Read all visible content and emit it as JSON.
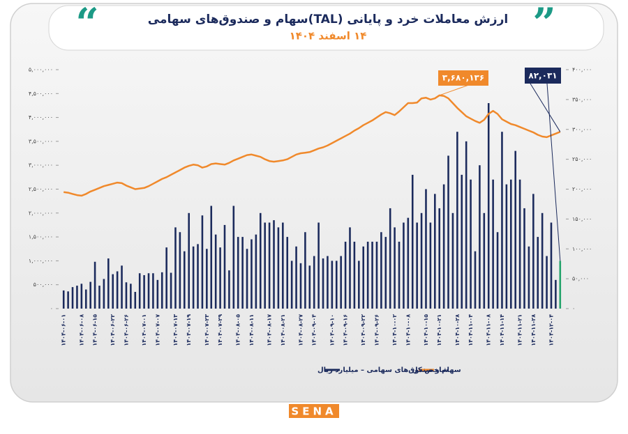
{
  "chart_data": {
    "type": "bar",
    "title": "ارزش معاملات خرد و پایانی (TAL)سهام و صندوق‌های سهامی",
    "subtitle": "۱۴ اسفند ۱۴۰۴",
    "annotations": [
      "۳,۶۸۰,۱۳۶",
      "۸۲,۰۳۱"
    ],
    "logo": "SENA",
    "categories": [
      "۱۴۰۴-۰۶-۰۱",
      null,
      null,
      null,
      "۱۴۰۴-۰۶-۰۸",
      null,
      null,
      "۱۴۰۴-۰۶-۱۵",
      null,
      null,
      null,
      "۱۴۰۴-۰۶-۲۲",
      null,
      null,
      "۱۴۰۴-۰۶-۲۶",
      null,
      null,
      null,
      "۱۴۰۴-۰۷-۰۱",
      null,
      null,
      "۱۴۰۴-۰۷-۰۷",
      null,
      null,
      null,
      "۱۴۰۴-۰۷-۱۳",
      null,
      null,
      "۱۴۰۴-۰۷-۱۹",
      null,
      null,
      null,
      "۱۴۰۴-۰۷-۲۳",
      null,
      null,
      "۱۴۰۴-۰۷-۲۹",
      null,
      null,
      null,
      "۱۴۰۴-۰۸-۰۵",
      null,
      null,
      "۱۴۰۴-۰۸-۱۱",
      null,
      null,
      null,
      "۱۴۰۴-۰۸-۱۷",
      null,
      null,
      "۱۴۰۴-۰۸-۲۱",
      null,
      null,
      null,
      "۱۴۰۴-۰۸-۲۷",
      null,
      null,
      "۱۴۰۴-۰۹-۰۴",
      null,
      null,
      null,
      "۱۴۰۴-۰۹-۱۰",
      null,
      null,
      "۱۴۰۴-۰۹-۱۶",
      null,
      null,
      null,
      "۱۴۰۴-۰۹-۲۲",
      null,
      null,
      "۱۴۰۴-۰۹-۲۶",
      null,
      null,
      null,
      "۱۴۰۴-۱۰-۰۲",
      null,
      null,
      "۱۴۰۴-۱۰-۰۸",
      null,
      null,
      null,
      "۱۴۰۴-۱۰-۱۵",
      null,
      null,
      "۱۴۰۴-۱۰-۲۱",
      null,
      null,
      null,
      "۱۴۰۴-۱۰-۲۸",
      null,
      null,
      "۱۴۰۴-۱۱-۰۴",
      null,
      null,
      null,
      "۱۴۰۴-۱۱-۰۸",
      null,
      null,
      "۱۴۰۴-۱۱-۱۴",
      null,
      null,
      null,
      "۱۴۰۴-۱۱-۲۱",
      null,
      null,
      "۱۴۰۴-۱۱-۲۸",
      null,
      null,
      null,
      "۱۴۰۴-۱۲-۰۴",
      null,
      null
    ],
    "series": [
      {
        "name": "سهام و صندوق‌های سهامی – میلیارد ریال",
        "color": "#1b2a5c",
        "last_color": "#22a36a",
        "values": [
          380000,
          360000,
          450000,
          480000,
          520000,
          400000,
          560000,
          980000,
          480000,
          620000,
          1050000,
          720000,
          780000,
          900000,
          550000,
          520000,
          350000,
          740000,
          700000,
          740000,
          740000,
          600000,
          760000,
          1280000,
          750000,
          1700000,
          1600000,
          1200000,
          2000000,
          1300000,
          1350000,
          1950000,
          1250000,
          2150000,
          1550000,
          1280000,
          1750000,
          800000,
          2150000,
          1500000,
          1500000,
          1250000,
          1450000,
          1550000,
          2000000,
          1800000,
          1800000,
          1850000,
          1700000,
          1800000,
          1500000,
          1000000,
          1300000,
          950000,
          1600000,
          900000,
          1100000,
          1800000,
          1050000,
          1100000,
          1000000,
          1000000,
          1100000,
          1400000,
          1700000,
          1400000,
          1000000,
          1300000,
          1400000,
          1400000,
          1400000,
          1600000,
          1500000,
          2100000,
          1700000,
          1400000,
          1800000,
          1900000,
          2800000,
          1800000,
          2000000,
          2500000,
          1800000,
          2400000,
          2100000,
          2600000,
          3200000,
          2000000,
          3700000,
          2800000,
          3500000,
          2700000,
          1200000,
          3000000,
          2000000,
          4300000,
          2700000,
          1600000,
          3700000,
          2600000,
          2700000,
          3300000,
          2700000,
          2100000,
          1300000,
          2400000,
          1500000,
          2000000,
          1100000,
          1800000,
          600000,
          1000000
        ]
      },
      {
        "name": "شاخص کل",
        "color": "#f0892b",
        "axis": "y2",
        "values": [
          195000,
          194000,
          192000,
          190000,
          189000,
          192000,
          196000,
          199000,
          202000,
          205000,
          207000,
          209000,
          211000,
          210000,
          206000,
          203000,
          200000,
          201000,
          202000,
          205000,
          209000,
          213000,
          217000,
          220000,
          224000,
          228000,
          232000,
          236000,
          239000,
          241000,
          240000,
          236000,
          238000,
          242000,
          243000,
          242000,
          241000,
          244000,
          248000,
          251000,
          254000,
          257000,
          258000,
          256000,
          254000,
          250000,
          247000,
          246000,
          247000,
          248000,
          250000,
          254000,
          258000,
          260000,
          261000,
          262000,
          265000,
          268000,
          270000,
          273000,
          277000,
          281000,
          285000,
          289000,
          293000,
          298000,
          302000,
          307000,
          311000,
          315000,
          320000,
          325000,
          329000,
          327000,
          324000,
          330000,
          337000,
          344000,
          344000,
          345000,
          352000,
          353000,
          350000,
          352000,
          357000,
          356000,
          352000,
          344000,
          336000,
          329000,
          322000,
          318000,
          314000,
          311000,
          316000,
          326000,
          331000,
          326000,
          317000,
          313000,
          309000,
          307000,
          304000,
          301000,
          298000,
          295000,
          291000,
          288000,
          287000,
          290000,
          293000,
          296000
        ]
      }
    ],
    "ylim": [
      0,
      5000000
    ],
    "yticks": [
      {
        "value": 0,
        "label": "۰"
      },
      {
        "value": 500000,
        "label": "۵۰۰,۰۰۰"
      },
      {
        "value": 1000000,
        "label": "۱,۰۰۰,۰۰۰"
      },
      {
        "value": 1500000,
        "label": "۱,۵۰۰,۰۰۰"
      },
      {
        "value": 2000000,
        "label": "۲,۰۰۰,۰۰۰"
      },
      {
        "value": 2500000,
        "label": "۲,۵۰۰,۰۰۰"
      },
      {
        "value": 3000000,
        "label": "۳,۰۰۰,۰۰۰"
      },
      {
        "value": 3500000,
        "label": "۳,۵۰۰,۰۰۰"
      },
      {
        "value": 4000000,
        "label": "۴,۰۰۰,۰۰۰"
      },
      {
        "value": 4500000,
        "label": "۴,۵۰۰,۰۰۰"
      },
      {
        "value": 5000000,
        "label": "۵,۰۰۰,۰۰۰"
      }
    ],
    "y2lim": [
      0,
      400000
    ],
    "y2ticks": [
      {
        "value": 0,
        "label": "۰"
      },
      {
        "value": 50000,
        "label": "۵۰,۰۰۰"
      },
      {
        "value": 100000,
        "label": "۱۰۰,۰۰۰"
      },
      {
        "value": 150000,
        "label": "۱۵۰,۰۰۰"
      },
      {
        "value": 200000,
        "label": "۲۰۰,۰۰۰"
      },
      {
        "value": 250000,
        "label": "۲۵۰,۰۰۰"
      },
      {
        "value": 300000,
        "label": "۳۰۰,۰۰۰"
      },
      {
        "value": 350000,
        "label": "۳۵۰,۰۰۰"
      },
      {
        "value": 400000,
        "label": "۴۰۰,۰۰۰"
      }
    ],
    "grid": false
  }
}
